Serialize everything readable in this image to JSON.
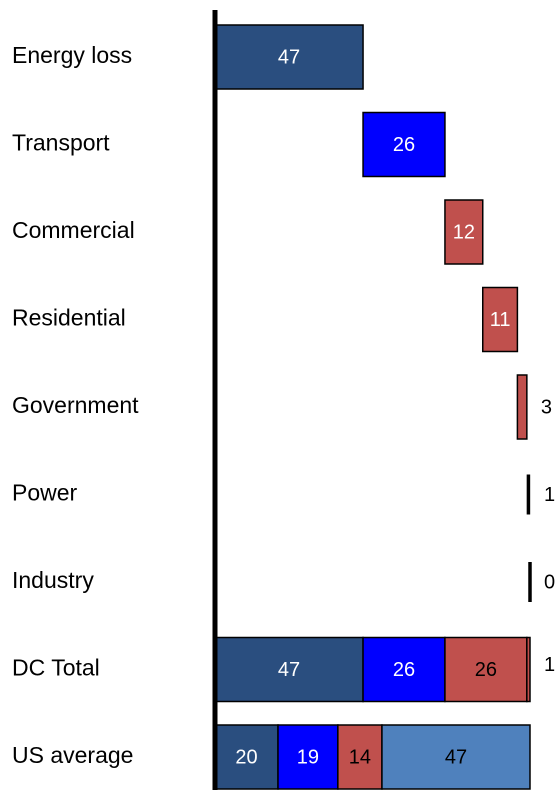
{
  "chart_data": {
    "type": "waterfall",
    "categories": [
      "Energy loss",
      "Transport",
      "Commercial",
      "Residential",
      "Government",
      "Power",
      "Industry"
    ],
    "values": [
      47,
      26,
      12,
      11,
      3,
      1,
      0
    ],
    "colors": [
      "#2a4e7f",
      "#0000ff",
      "#c0504d",
      "#c0504d",
      "#c0504d",
      "#000000",
      "#000000"
    ],
    "totals": [
      {
        "category": "DC Total",
        "values": [
          47,
          26,
          26,
          1
        ],
        "colors": [
          "#2a4e7f",
          "#0000ff",
          "#c0504d",
          "#c0504d"
        ]
      },
      {
        "category": "US average",
        "values": [
          20,
          19,
          14,
          47
        ],
        "colors": [
          "#2a4e7f",
          "#0000ff",
          "#c0504d",
          "#4f81bd"
        ]
      }
    ],
    "xlim": [
      0,
      100
    ]
  }
}
